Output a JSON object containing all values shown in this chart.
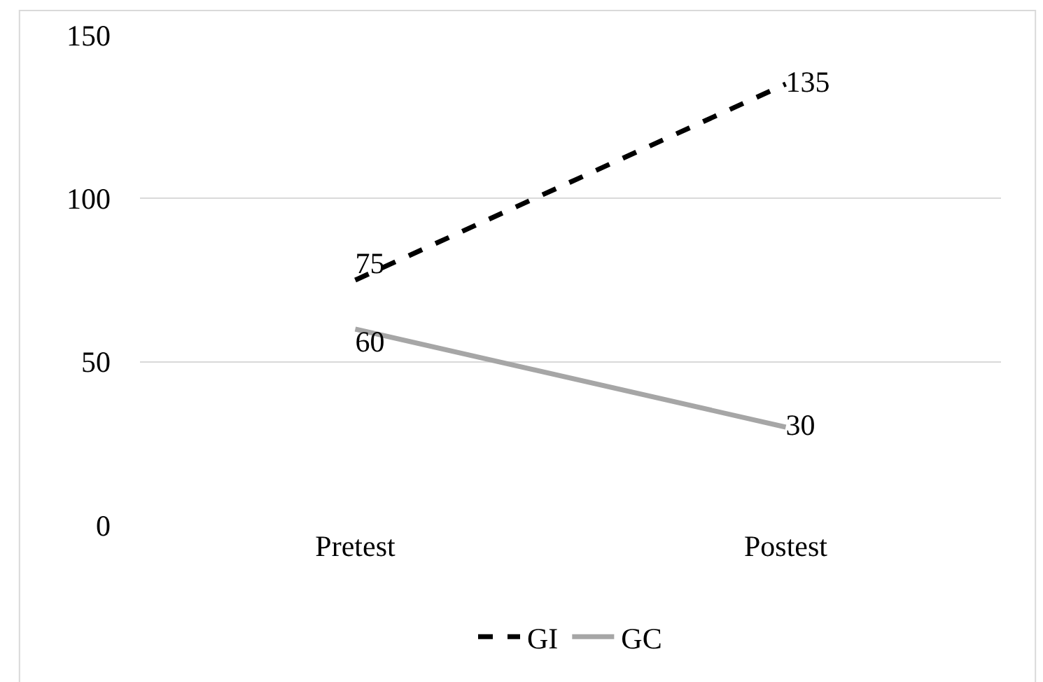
{
  "chart_data": {
    "type": "line",
    "categories": [
      "Pretest",
      "Postest"
    ],
    "series": [
      {
        "name": "GI",
        "color": "#000000",
        "values": [
          75,
          135
        ],
        "line_style": "dashed"
      },
      {
        "name": "GC",
        "color": "#a6a6a6",
        "values": [
          60,
          30
        ],
        "line_style": "solid"
      }
    ],
    "ylim": [
      0,
      150
    ],
    "yticks": [
      0,
      50,
      100,
      150
    ],
    "grid": "y",
    "legend": "bottom",
    "data_labels": true,
    "marker": "none"
  }
}
